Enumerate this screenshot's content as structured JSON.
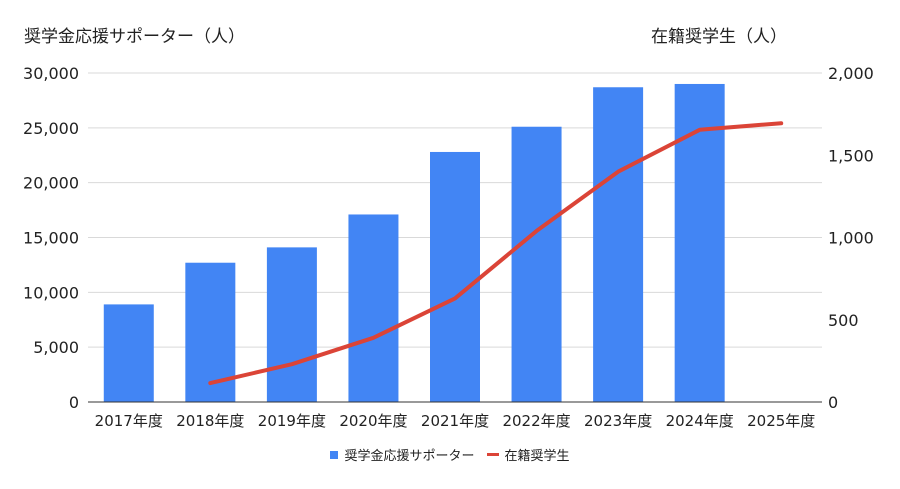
{
  "chart_data": {
    "type": "bar",
    "categories": [
      "2017年度",
      "2018年度",
      "2019年度",
      "2020年度",
      "2021年度",
      "2022年度",
      "2023年度",
      "2024年度",
      "2025年度"
    ],
    "y_left": {
      "title": "奨学金応援サポーター（人）",
      "ylim": [
        0,
        30000
      ],
      "ticks": [
        0,
        5000,
        10000,
        15000,
        20000,
        25000,
        30000
      ],
      "tick_labels": [
        "0",
        "5,000",
        "10,000",
        "15,000",
        "20,000",
        "25,000",
        "30,000"
      ]
    },
    "y_right": {
      "title": "在籍奨学生（人）",
      "ylim": [
        0,
        2000
      ],
      "ticks": [
        0,
        500,
        1000,
        1500,
        2000
      ],
      "tick_labels": [
        "0",
        "500",
        "1,000",
        "1,500",
        "2,000"
      ]
    },
    "series": [
      {
        "name": "奨学金応援サポーター",
        "type": "bar",
        "axis": "left",
        "color": "#4285f4",
        "values": [
          8900,
          12700,
          14100,
          17100,
          22800,
          25100,
          28700,
          29000,
          null
        ]
      },
      {
        "name": "在籍奨学生",
        "type": "line",
        "axis": "right",
        "color": "#db4437",
        "values": [
          null,
          115,
          230,
          390,
          630,
          1040,
          1400,
          1655,
          1695
        ]
      }
    ],
    "grid": true,
    "legend_position": "bottom"
  }
}
